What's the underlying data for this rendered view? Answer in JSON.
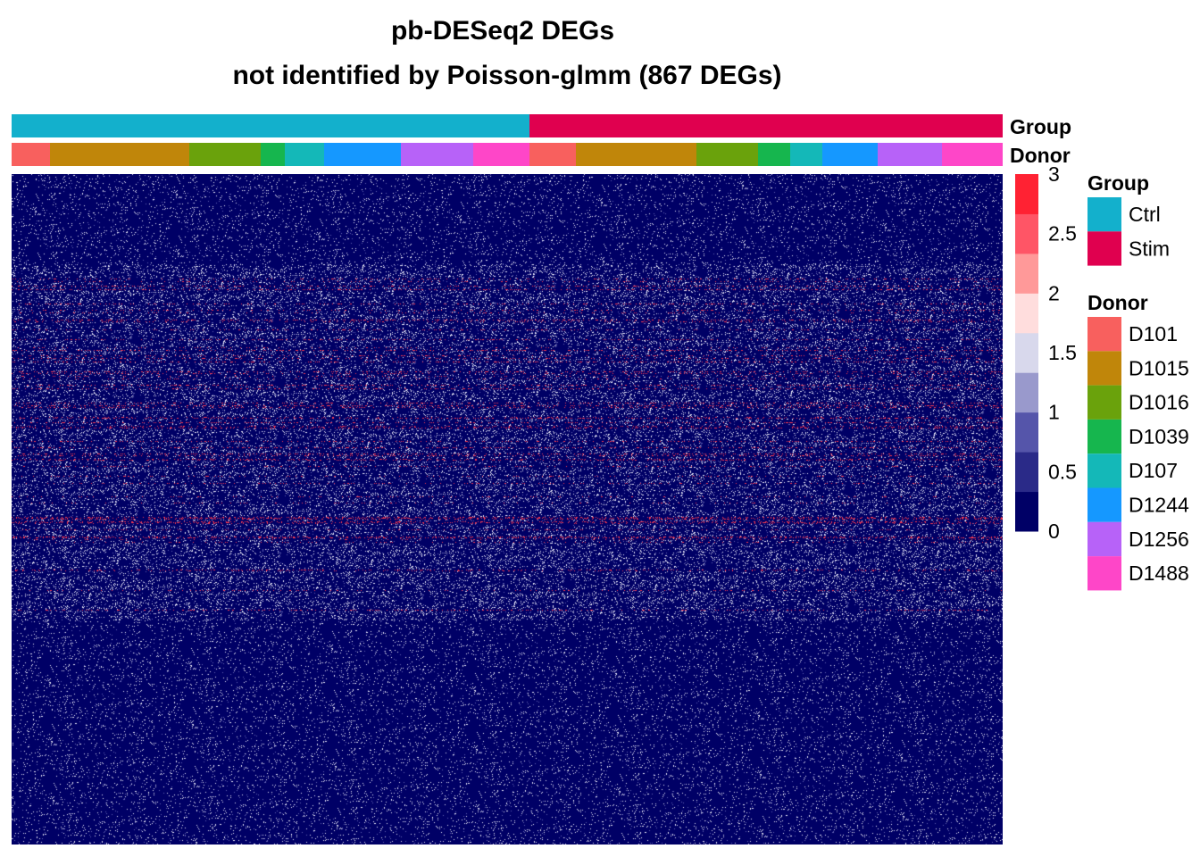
{
  "chart_data": {
    "type": "heatmap",
    "title": "pb-DESeq2 DEGs",
    "subtitle": "not identified by Poisson-glmm (867 DEGs)",
    "annotation_rows": [
      {
        "label": "Group"
      },
      {
        "label": "Donor"
      }
    ],
    "group_segments": [
      {
        "name": "Ctrl",
        "width": 580
      },
      {
        "name": "Stim",
        "width": 530
      }
    ],
    "donor_segments": [
      {
        "name": "D101",
        "width": 43
      },
      {
        "name": "D1015",
        "width": 156
      },
      {
        "name": "D1016",
        "width": 80
      },
      {
        "name": "D1039",
        "width": 27
      },
      {
        "name": "D107",
        "width": 44
      },
      {
        "name": "D1244",
        "width": 86
      },
      {
        "name": "D1256",
        "width": 81
      },
      {
        "name": "D1488",
        "width": 63
      },
      {
        "name": "D101",
        "width": 52
      },
      {
        "name": "D1015",
        "width": 135
      },
      {
        "name": "D1016",
        "width": 69
      },
      {
        "name": "D1039",
        "width": 36
      },
      {
        "name": "D107",
        "width": 36
      },
      {
        "name": "D1244",
        "width": 62
      },
      {
        "name": "D1256",
        "width": 72
      },
      {
        "name": "D1488",
        "width": 68
      }
    ],
    "color_scale": {
      "min": 0,
      "max": 3,
      "ticks": [
        "3",
        "2.5",
        "2",
        "1.5",
        "1",
        "0.5",
        "0"
      ],
      "colors": [
        "#000066",
        "#2a2a88",
        "#5555aa",
        "#9999cc",
        "#d8d8ec",
        "#ffdddd",
        "#ff9999",
        "#ff5566",
        "#ff2233"
      ]
    },
    "legends": [
      {
        "title": "Group",
        "entries": [
          {
            "label": "Ctrl",
            "color": "#13b0cc"
          },
          {
            "label": "Stim",
            "color": "#e0004f"
          }
        ]
      },
      {
        "title": "Donor",
        "entries": [
          {
            "label": "D101",
            "color": "#f8605e"
          },
          {
            "label": "D1015",
            "color": "#c0860a"
          },
          {
            "label": "D1016",
            "color": "#6aa20c"
          },
          {
            "label": "D1039",
            "color": "#16b64e"
          },
          {
            "label": "D107",
            "color": "#14b8b8"
          },
          {
            "label": "D1244",
            "color": "#1598ff"
          },
          {
            "label": "D1256",
            "color": "#b762f8"
          },
          {
            "label": "D1488",
            "color": "#fe46c8"
          }
        ]
      }
    ]
  }
}
